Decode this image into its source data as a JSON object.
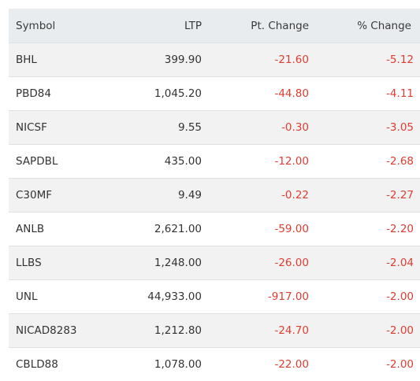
{
  "table": {
    "headers": {
      "symbol": "Symbol",
      "ltp": "LTP",
      "pt_change": "Pt. Change",
      "pct_change": "% Change"
    },
    "rows": [
      {
        "symbol": "BHL",
        "ltp": "399.90",
        "pt_change": "-21.60",
        "pct_change": "-5.12"
      },
      {
        "symbol": "PBD84",
        "ltp": "1,045.20",
        "pt_change": "-44.80",
        "pct_change": "-4.11"
      },
      {
        "symbol": "NICSF",
        "ltp": "9.55",
        "pt_change": "-0.30",
        "pct_change": "-3.05"
      },
      {
        "symbol": "SAPDBL",
        "ltp": "435.00",
        "pt_change": "-12.00",
        "pct_change": "-2.68"
      },
      {
        "symbol": "C30MF",
        "ltp": "9.49",
        "pt_change": "-0.22",
        "pct_change": "-2.27"
      },
      {
        "symbol": "ANLB",
        "ltp": "2,621.00",
        "pt_change": "-59.00",
        "pct_change": "-2.20"
      },
      {
        "symbol": "LLBS",
        "ltp": "1,248.00",
        "pt_change": "-26.00",
        "pct_change": "-2.04"
      },
      {
        "symbol": "UNL",
        "ltp": "44,933.00",
        "pt_change": "-917.00",
        "pct_change": "-2.00"
      },
      {
        "symbol": "NICAD8283",
        "ltp": "1,212.80",
        "pt_change": "-24.70",
        "pct_change": "-2.00"
      },
      {
        "symbol": "CBLD88",
        "ltp": "1,078.00",
        "pt_change": "-22.00",
        "pct_change": "-2.00"
      }
    ]
  },
  "colors": {
    "negative": "#e03c31",
    "header_bg": "#e9ecef",
    "stripe_bg": "#f2f2f2"
  }
}
